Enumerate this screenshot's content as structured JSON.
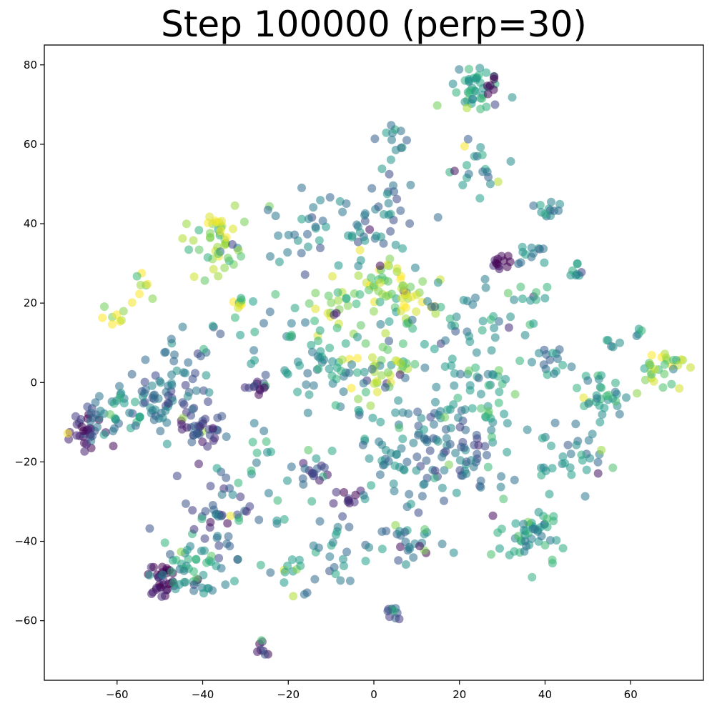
{
  "chart_data": {
    "type": "scatter",
    "title": "Step 100000 (perp=30)",
    "xlabel": "",
    "ylabel": "",
    "xlim": [
      -77,
      77
    ],
    "ylim": [
      -75,
      85
    ],
    "xticks": [
      -60,
      -40,
      -20,
      0,
      20,
      40,
      60
    ],
    "yticks": [
      -60,
      -40,
      -20,
      0,
      20,
      40,
      60,
      80
    ],
    "xtick_labels": [
      "−60",
      "−40",
      "−20",
      "0",
      "20",
      "40",
      "60"
    ],
    "ytick_labels": [
      "−60",
      "−40",
      "−20",
      "0",
      "20",
      "40",
      "60",
      "80"
    ],
    "grid": false,
    "legend": "none",
    "colormap": "viridis",
    "marker_alpha": 0.55,
    "clusters": [
      {
        "x": 24,
        "y": 74,
        "spread": 3,
        "n": 40,
        "c": 0.55
      },
      {
        "x": 27,
        "y": 75,
        "spread": 1.2,
        "n": 6,
        "c": 0.0
      },
      {
        "x": -36,
        "y": 35,
        "spread": 4,
        "n": 40,
        "c": 0.8
      },
      {
        "x": -36,
        "y": 40,
        "spread": 2,
        "n": 10,
        "c": 0.95
      },
      {
        "x": 30,
        "y": 30,
        "spread": 1.3,
        "n": 12,
        "c": 0.0
      },
      {
        "x": 37,
        "y": 33,
        "spread": 2,
        "n": 12,
        "c": 0.5
      },
      {
        "x": 41,
        "y": 43,
        "spread": 1.5,
        "n": 12,
        "c": 0.45
      },
      {
        "x": 47,
        "y": 28,
        "spread": 1.3,
        "n": 8,
        "c": 0.6
      },
      {
        "x": 67,
        "y": 4,
        "spread": 2.5,
        "n": 30,
        "c": 0.85
      },
      {
        "x": -67,
        "y": -12,
        "spread": 2.5,
        "n": 35,
        "c": 0.15
      },
      {
        "x": -49,
        "y": -50,
        "spread": 2,
        "n": 35,
        "c": 0.0
      },
      {
        "x": -42,
        "y": -47,
        "spread": 3.5,
        "n": 45,
        "c": 0.5
      },
      {
        "x": -40,
        "y": -12,
        "spread": 3,
        "n": 40,
        "c": 0.2
      },
      {
        "x": -26,
        "y": -1,
        "spread": 1.5,
        "n": 14,
        "c": 0.15
      },
      {
        "x": -14,
        "y": -23,
        "spread": 1.5,
        "n": 14,
        "c": 0.2
      },
      {
        "x": -7,
        "y": -29,
        "spread": 1.3,
        "n": 10,
        "c": 0.05
      },
      {
        "x": 5,
        "y": -58,
        "spread": 1.2,
        "n": 10,
        "c": 0.3
      },
      {
        "x": -26,
        "y": -67,
        "spread": 1.2,
        "n": 8,
        "c": 0.15
      },
      {
        "x": 3,
        "y": 25,
        "spread": 3,
        "n": 35,
        "c": 0.85
      },
      {
        "x": -8,
        "y": 18,
        "spread": 3,
        "n": 25,
        "c": 0.8
      },
      {
        "x": 8,
        "y": 20,
        "spread": 3,
        "n": 25,
        "c": 0.9
      },
      {
        "x": 2,
        "y": 4,
        "spread": 4,
        "n": 40,
        "c": 0.85
      },
      {
        "x": -31,
        "y": 20,
        "spread": 1.5,
        "n": 8,
        "c": 0.95
      },
      {
        "x": -61,
        "y": 16,
        "spread": 1.5,
        "n": 8,
        "c": 0.95
      },
      {
        "x": -54,
        "y": 24,
        "spread": 1.8,
        "n": 8,
        "c": 0.85
      },
      {
        "x": -52,
        "y": -5,
        "spread": 4,
        "n": 45,
        "c": 0.35
      },
      {
        "x": -60,
        "y": -8,
        "spread": 4,
        "n": 30,
        "c": 0.5
      },
      {
        "x": 36,
        "y": -38,
        "spread": 4,
        "n": 50,
        "c": 0.55
      },
      {
        "x": 52,
        "y": -3,
        "spread": 3.5,
        "n": 30,
        "c": 0.55
      },
      {
        "x": 41,
        "y": 6,
        "spread": 2.5,
        "n": 16,
        "c": 0.45
      },
      {
        "x": 20,
        "y": -17,
        "spread": 6,
        "n": 70,
        "c": 0.35
      },
      {
        "x": 45,
        "y": -20,
        "spread": 5,
        "n": 35,
        "c": 0.45
      },
      {
        "x": 5,
        "y": -15,
        "spread": 7,
        "n": 60,
        "c": 0.45
      },
      {
        "x": 8,
        "y": -40,
        "spread": 4,
        "n": 30,
        "c": 0.4
      },
      {
        "x": -8,
        "y": -43,
        "spread": 4,
        "n": 25,
        "c": 0.45
      },
      {
        "x": -20,
        "y": -48,
        "spread": 2.5,
        "n": 12,
        "c": 0.45
      },
      {
        "x": 0,
        "y": 40,
        "spread": 6,
        "n": 50,
        "c": 0.4
      },
      {
        "x": -15,
        "y": 38,
        "spread": 5,
        "n": 25,
        "c": 0.4
      },
      {
        "x": 25,
        "y": 55,
        "spread": 4,
        "n": 20,
        "c": 0.45
      },
      {
        "x": 5,
        "y": 62,
        "spread": 2,
        "n": 10,
        "c": 0.45
      },
      {
        "x": -35,
        "y": -35,
        "spread": 6,
        "n": 40,
        "c": 0.3
      },
      {
        "x": -25,
        "y": -25,
        "spread": 6,
        "n": 30,
        "c": 0.5
      },
      {
        "x": 20,
        "y": 10,
        "spread": 8,
        "n": 50,
        "c": 0.5
      },
      {
        "x": 25,
        "y": -5,
        "spread": 5,
        "n": 35,
        "c": 0.6
      },
      {
        "x": -10,
        "y": 5,
        "spread": 6,
        "n": 35,
        "c": 0.5
      },
      {
        "x": 56,
        "y": 10,
        "spread": 1.2,
        "n": 5,
        "c": 0.5
      },
      {
        "x": 62,
        "y": 13,
        "spread": 0.8,
        "n": 4,
        "c": 0.5
      },
      {
        "x": 35,
        "y": 20,
        "spread": 4,
        "n": 15,
        "c": 0.6
      },
      {
        "x": -45,
        "y": 5,
        "spread": 5,
        "n": 30,
        "c": 0.35
      },
      {
        "x": -20,
        "y": 10,
        "spread": 8,
        "n": 30,
        "c": 0.5
      }
    ]
  }
}
